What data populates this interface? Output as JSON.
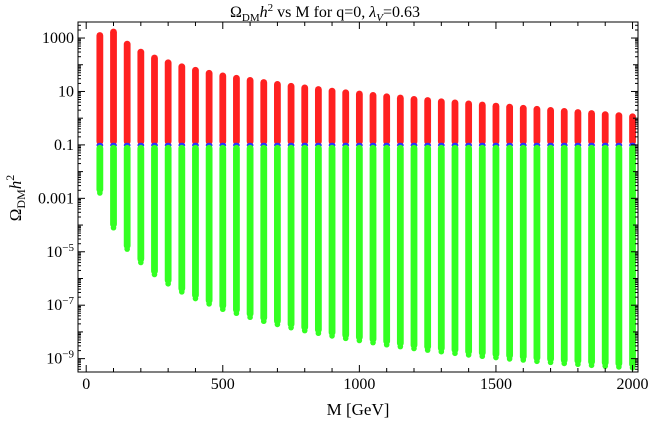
{
  "chart_data": {
    "type": "scatter",
    "title": "Ω_DM h^2 vs M for q=0, λ_V=0.63",
    "title_parts": {
      "omega": "Ω",
      "omega_sub": "DM",
      "h": "h",
      "h_sup": "2",
      "text_mid": " vs M for q=0, ",
      "lambda": "λ",
      "lambda_sub": "V",
      "text_end": "=0.63"
    },
    "xlabel": "M [GeV]",
    "ylabel": "Ω_DM h^2",
    "ylabel_parts": {
      "omega": "Ω",
      "omega_sub": "DM",
      "h": "h",
      "h_sup": "2"
    },
    "xlim": [
      -30,
      2020
    ],
    "ylim_log10": [
      -9.5,
      3.6
    ],
    "log_y": true,
    "grid": false,
    "x_ticks": [
      0,
      500,
      1000,
      1500,
      2000
    ],
    "x_tick_labels": [
      "0",
      "500",
      "1000",
      "1500",
      "2000"
    ],
    "y_ticks": [
      {
        "log": 3,
        "base": "1000",
        "exp": ""
      },
      {
        "log": 1,
        "base": "10",
        "exp": ""
      },
      {
        "log": -1,
        "base": "0.1",
        "exp": ""
      },
      {
        "log": -3,
        "base": "0.001",
        "exp": ""
      },
      {
        "log": -5,
        "base": "10",
        "exp": "−5"
      },
      {
        "log": -7,
        "base": "10",
        "exp": "−7"
      },
      {
        "log": -9,
        "base": "10",
        "exp": "−9"
      }
    ],
    "mass_points": [
      50,
      100,
      150,
      200,
      250,
      300,
      350,
      400,
      450,
      500,
      550,
      600,
      650,
      700,
      750,
      800,
      850,
      900,
      950,
      1000,
      1050,
      1100,
      1150,
      1200,
      1250,
      1300,
      1350,
      1400,
      1450,
      1500,
      1550,
      1600,
      1650,
      1700,
      1750,
      1800,
      1850,
      1900,
      1950,
      2000
    ],
    "series": [
      {
        "color": "#ff2020",
        "upper_log10": [
          3.22,
          3.35,
          2.9,
          2.6,
          2.38,
          2.2,
          2.05,
          1.92,
          1.81,
          1.71,
          1.62,
          1.54,
          1.46,
          1.39,
          1.32,
          1.26,
          1.2,
          1.14,
          1.08,
          1.03,
          0.98,
          0.93,
          0.88,
          0.83,
          0.79,
          0.74,
          0.7,
          0.66,
          0.62,
          0.58,
          0.54,
          0.5,
          0.46,
          0.42,
          0.38,
          0.34,
          0.3,
          0.26,
          0.22,
          0.18
        ],
        "lower_log10": -1
      },
      {
        "color": "#2a36ff",
        "upper_log10": -0.92,
        "lower_log10": -1.1
      },
      {
        "color": "#33ff22",
        "upper_log10": -1.0,
        "lower_log10": [
          -2.8,
          -4.1,
          -4.9,
          -5.4,
          -5.85,
          -6.2,
          -6.5,
          -6.75,
          -6.95,
          -7.15,
          -7.3,
          -7.45,
          -7.6,
          -7.72,
          -7.84,
          -7.95,
          -8.05,
          -8.15,
          -8.24,
          -8.32,
          -8.4,
          -8.48,
          -8.55,
          -8.62,
          -8.68,
          -8.74,
          -8.8,
          -8.86,
          -8.91,
          -8.96,
          -9.01,
          -9.05,
          -9.1,
          -9.14,
          -9.18,
          -9.21,
          -9.25,
          -9.28,
          -9.31,
          -9.34
        ]
      }
    ]
  }
}
